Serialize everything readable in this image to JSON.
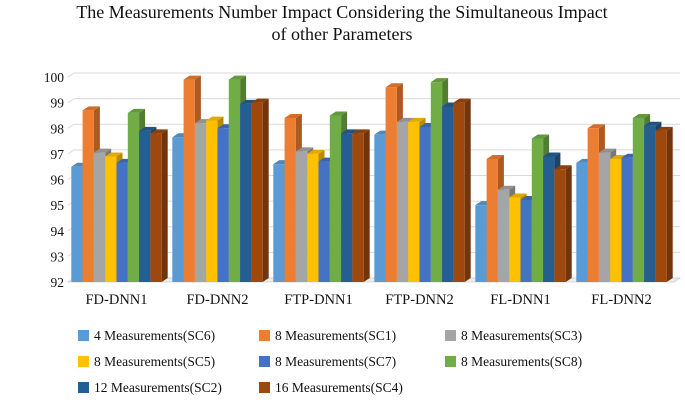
{
  "chart_data": {
    "type": "bar",
    "title_lines": [
      "The Measurements Number Impact Considering the Simultaneous Impact",
      "of other Parameters"
    ],
    "categories": [
      "FD-DNN1",
      "FD-DNN2",
      "FTP-DNN1",
      "FTP-DNN2",
      "FL-DNN1",
      "FL-DNN2"
    ],
    "ylim": [
      92,
      100
    ],
    "yticks": [
      92,
      93,
      94,
      95,
      96,
      97,
      98,
      99,
      100
    ],
    "grid": true,
    "legend_position": "bottom",
    "series": [
      {
        "name": "4 Measurements(SC6)",
        "color": "#5b9bd5",
        "values": [
          96.5,
          97.65,
          96.6,
          97.75,
          95.0,
          96.65
        ]
      },
      {
        "name": "8 Measurements(SC1)",
        "color": "#ed7d31",
        "values": [
          98.7,
          99.9,
          98.4,
          99.6,
          96.8,
          98.0
        ]
      },
      {
        "name": "8 Measurements(SC3)",
        "color": "#a5a5a5",
        "values": [
          97.05,
          98.2,
          97.1,
          98.25,
          95.6,
          97.05
        ]
      },
      {
        "name": "8 Measurements(SC5)",
        "color": "#ffc000",
        "values": [
          96.9,
          98.3,
          97.0,
          98.25,
          95.3,
          96.8
        ]
      },
      {
        "name": "8 Measurements(SC7)",
        "color": "#4472c4",
        "values": [
          96.65,
          98.0,
          96.7,
          98.05,
          95.2,
          96.85
        ]
      },
      {
        "name": "8 Measurements(SC8)",
        "color": "#70ad47",
        "values": [
          98.6,
          99.9,
          98.5,
          99.8,
          97.6,
          98.4
        ]
      },
      {
        "name": "12 Measurements(SC2)",
        "color": "#255e91",
        "values": [
          97.9,
          98.95,
          97.8,
          98.85,
          96.9,
          98.1
        ]
      },
      {
        "name": "16 Measurements(SC4)",
        "color": "#9e480e",
        "values": [
          97.8,
          99.0,
          97.8,
          99.0,
          96.4,
          97.9
        ]
      }
    ]
  }
}
